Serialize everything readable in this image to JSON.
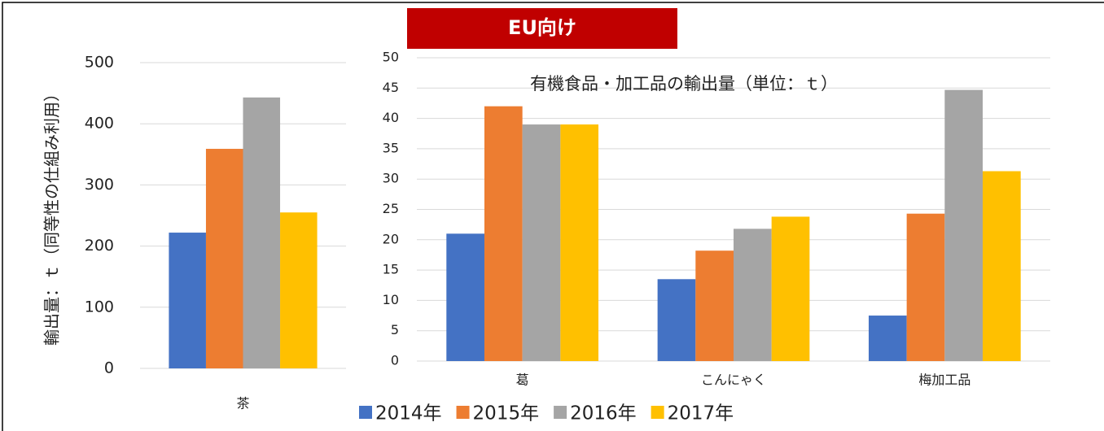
{
  "banner": "EU向け",
  "chart_data": [
    {
      "type": "bar",
      "y_label": "輸出量：ｔ（同等性の仕組み利用）",
      "categories": [
        "茶"
      ],
      "series": [
        {
          "color": "#4472c4",
          "values": [
            222
          ]
        },
        {
          "color": "#ed7d31",
          "values": [
            359
          ]
        },
        {
          "color": "#a5a5a5",
          "values": [
            443
          ]
        },
        {
          "color": "#ffc000",
          "values": [
            255
          ]
        }
      ],
      "ylim": [
        0,
        500
      ],
      "yticks": [
        0,
        100,
        200,
        300,
        400,
        500
      ],
      "grid": true
    },
    {
      "type": "bar",
      "title": "有機食品・加工品の輸出量（単位：ｔ）",
      "categories": [
        "葛",
        "こんにゃく",
        "梅加工品"
      ],
      "series": [
        {
          "name": "2014年",
          "color": "#4472c4",
          "values": [
            21,
            13.5,
            7.5
          ]
        },
        {
          "name": "2015年",
          "color": "#ed7d31",
          "values": [
            42,
            18.2,
            24.3
          ]
        },
        {
          "name": "2016年",
          "color": "#a5a5a5",
          "values": [
            39,
            21.8,
            44.7
          ]
        },
        {
          "name": "2017年",
          "color": "#ffc000",
          "values": [
            39,
            23.8,
            31.3
          ]
        }
      ],
      "ylim": [
        0,
        50
      ],
      "yticks": [
        0,
        5,
        10,
        15,
        20,
        25,
        30,
        35,
        40,
        45,
        50
      ],
      "grid": true,
      "legend": "bottom"
    }
  ]
}
